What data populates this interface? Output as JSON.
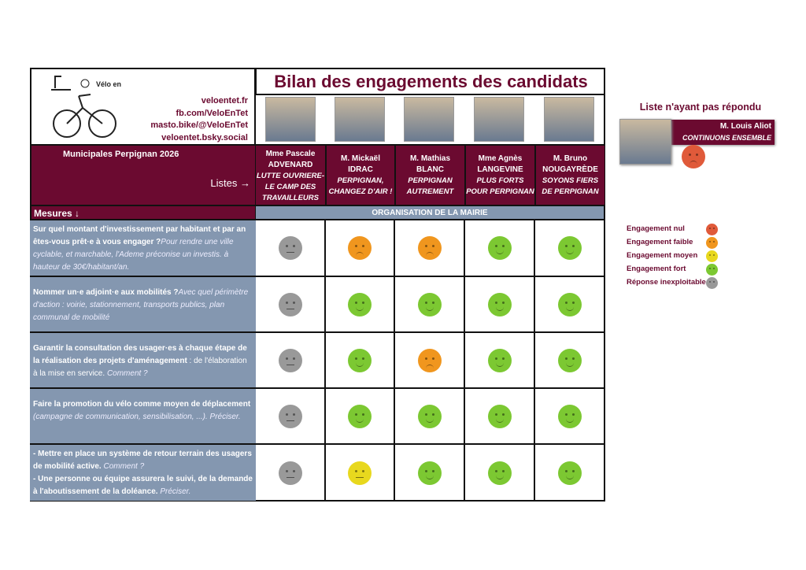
{
  "header": {
    "title": "Bilan des engagements des candidats",
    "logo_text": "Vélo en Têt",
    "links": [
      "veloentet.fr",
      "fb.com/VeloEnTet",
      "masto.bike/@VeloEnTet",
      "veloentet.bsky.social"
    ],
    "election": "Municipales Perpignan 2026",
    "listes_label": "Listes →",
    "mesures_label": "Mesures ↓",
    "section": "ORGANISATION DE LA MAIRIE"
  },
  "candidates": [
    {
      "name1": "Mme Pascale",
      "name2": "ADVENARD",
      "list": "LUTTE OUVRIERE- LE CAMP DES TRAVAILLEURS"
    },
    {
      "name1": "M. Mickaël",
      "name2": "IDRAC",
      "list": "PERPIGNAN, CHANGEZ D'AIR !"
    },
    {
      "name1": "M. Mathias",
      "name2": "BLANC",
      "list": "PERPIGNAN AUTREMENT"
    },
    {
      "name1": "Mme Agnès",
      "name2": "LANGEVINE",
      "list": "PLUS FORTS POUR PERPIGNAN"
    },
    {
      "name1": "M. Bruno",
      "name2": "NOUGAYRÈDE",
      "list": "SOYONS FIERS DE PERPIGNAN"
    }
  ],
  "measures": [
    {
      "b": "Sur quel montant d'investissement par habitant et par an êtes-vous prêt·e à vous engager ?",
      "n": "",
      "i": "Pour rendre une ville cyclable, et marchable, l'Ademe préconise un investis. à hauteur de 30€/habitant/an.",
      "ratings": [
        "inexploitable",
        "faible",
        "faible",
        "fort",
        "fort"
      ]
    },
    {
      "b": "Nommer un·e adjoint·e aux mobilités ?",
      "n": "",
      "i": "Avec quel périmètre d'action : voirie, stationnement, transports publics, plan communal de mobilité",
      "ratings": [
        "inexploitable",
        "fort",
        "fort",
        "fort",
        "fort"
      ]
    },
    {
      "b": "Garantir la consultation des usager·es à chaque étape de la réalisation des projets d'aménagement",
      "n": " : de l'élaboration à la mise en service. ",
      "i": "Comment ?",
      "ratings": [
        "inexploitable",
        "fort",
        "faible",
        "fort",
        "fort"
      ]
    },
    {
      "b": "Faire la promotion du vélo comme moyen de déplacement",
      "n": " ",
      "i": "(campagne de communication, sensibilisation, ...). Préciser.",
      "ratings": [
        "inexploitable",
        "fort",
        "fort",
        "fort",
        "fort"
      ]
    },
    {
      "b": "- Mettre en place un système de retour terrain des usagers de mobilité active.",
      "n": " ",
      "i": "Comment ?",
      "b2": "- Une personne ou équipe assurera le suivi, de la demande à l'aboutissement de la doléance.",
      "i2": "Préciser.",
      "ratings": [
        "inexploitable",
        "moyen",
        "fort",
        "fort",
        "fort"
      ]
    }
  ],
  "non_respondent": {
    "heading": "Liste n'ayant pas répondu",
    "name": "M. Louis Aliot",
    "list": "CONTINUONS ENSEMBLE",
    "rating": "nul"
  },
  "legend": [
    {
      "key": "nul",
      "label": "Engagement nul",
      "color": "#e05a3a"
    },
    {
      "key": "faible",
      "label": "Engagement faible",
      "color": "#f0961e"
    },
    {
      "key": "moyen",
      "label": "Engagement moyen",
      "color": "#e8d81e"
    },
    {
      "key": "fort",
      "label": "Engagement fort",
      "color": "#7cc832"
    },
    {
      "key": "inexploitable",
      "label": "Réponse inexploitable",
      "color": "#999999"
    }
  ]
}
